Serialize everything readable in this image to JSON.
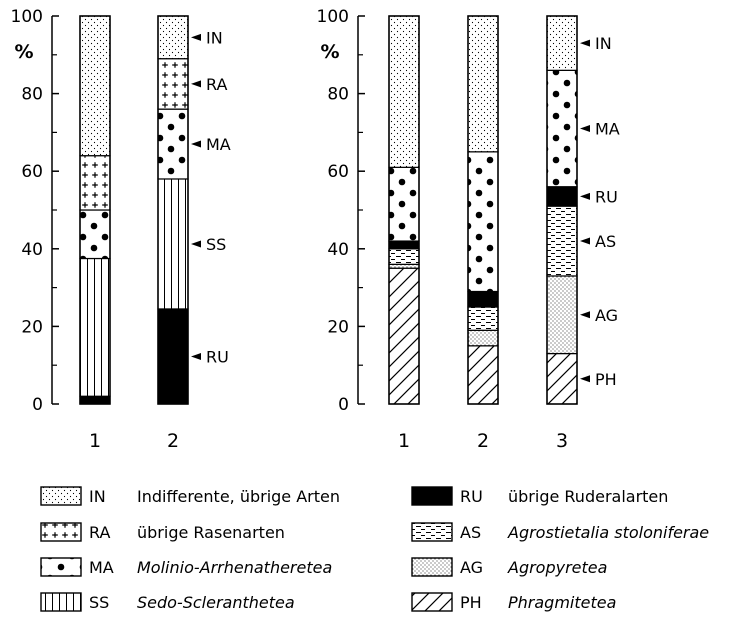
{
  "chart_data": [
    {
      "type": "bar",
      "stacked": true,
      "ylabel": "%",
      "ylim": [
        0,
        100
      ],
      "yticks": [
        0,
        20,
        40,
        60,
        80,
        100
      ],
      "categories": [
        "1",
        "2"
      ],
      "series": [
        {
          "name": "RU",
          "values": [
            2,
            24.5
          ]
        },
        {
          "name": "SS",
          "values": [
            35.5,
            33.5
          ]
        },
        {
          "name": "MA",
          "values": [
            12.5,
            18
          ]
        },
        {
          "name": "RA",
          "values": [
            14,
            13
          ]
        },
        {
          "name": "IN",
          "values": [
            36,
            11
          ]
        }
      ],
      "segment_labels": [
        "IN",
        "RA",
        "MA",
        "SS",
        "RU"
      ]
    },
    {
      "type": "bar",
      "stacked": true,
      "ylabel": "%",
      "ylim": [
        0,
        100
      ],
      "yticks": [
        0,
        20,
        40,
        60,
        80,
        100
      ],
      "categories": [
        "1",
        "2",
        "3"
      ],
      "series": [
        {
          "name": "PH",
          "values": [
            35,
            15,
            13
          ]
        },
        {
          "name": "AG",
          "values": [
            1,
            4,
            20
          ]
        },
        {
          "name": "AS",
          "values": [
            4,
            6,
            18
          ]
        },
        {
          "name": "RU",
          "values": [
            2,
            4,
            5
          ]
        },
        {
          "name": "MA",
          "values": [
            19,
            36,
            30
          ]
        },
        {
          "name": "IN",
          "values": [
            39,
            35,
            14
          ]
        }
      ],
      "segment_labels": [
        "IN",
        "MA",
        "RU",
        "AS",
        "AG",
        "PH"
      ]
    }
  ],
  "legend": [
    {
      "code": "IN",
      "pattern": "IN",
      "name": "Indifferente, übrige Arten",
      "italic": false
    },
    {
      "code": "RA",
      "pattern": "RA",
      "name": "übrige Rasenarten",
      "italic": false
    },
    {
      "code": "MA",
      "pattern": "MA",
      "name": "Molinio-Arrhenatheretea",
      "italic": true
    },
    {
      "code": "SS",
      "pattern": "SS",
      "name": "Sedo-Scleranthetea",
      "italic": true
    },
    {
      "code": "RU",
      "pattern": "RU",
      "name": "übrige Ruderalarten",
      "italic": false
    },
    {
      "code": "AS",
      "pattern": "AS",
      "name": "Agrostietalia stoloniferae",
      "italic": true
    },
    {
      "code": "AG",
      "pattern": "AG",
      "name": "Agropyretea",
      "italic": true
    },
    {
      "code": "PH",
      "pattern": "PH",
      "name": "Phragmitetea",
      "italic": true
    }
  ]
}
